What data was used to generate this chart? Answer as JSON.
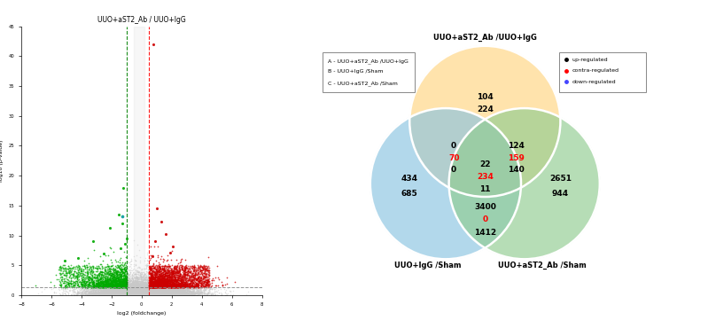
{
  "volcano_title": "UUO+aST2_Ab / UUO+IgG",
  "volcano_xlabel": "log2 (foldchange)",
  "volcano_ylabel": "log10 (p-value)",
  "volcano_xlim": [
    -8,
    8
  ],
  "volcano_ylim": [
    0,
    45
  ],
  "volcano_yticks": [
    0,
    5,
    10,
    15,
    20,
    25,
    30,
    35,
    40,
    45
  ],
  "volcano_xticks": [
    -8,
    -6,
    -4,
    -2,
    0,
    2,
    4,
    6,
    8
  ],
  "green_vline": -1.0,
  "red_vline": 0.5,
  "hline_y": 1.3,
  "venn_title_a": "UUO+aST2_Ab /UUO+IgG",
  "venn_title_b": "UUO+IgG /Sham",
  "venn_title_c": "UUO+aST2_Ab /Sham",
  "legend_a": "A - UUO+aST2_Ab /UUO+IgG",
  "legend_b": "B - UUO+IgG /Sham",
  "legend_c": "C - UUO+aST2_Ab /Sham",
  "circle_a_color": "#FFD580",
  "circle_b_color": "#89C4E1",
  "circle_c_color": "#90CC90",
  "circle_alpha": 0.65,
  "region_a_only_1": "104",
  "region_a_only_2": "224",
  "region_b_only_1": "434",
  "region_b_only_2": "685",
  "region_c_only_1": "2651",
  "region_c_only_2": "944",
  "region_ab_1": "0",
  "region_ab_2": "70",
  "region_ab_3": "0",
  "region_ac_1": "124",
  "region_ac_2": "159",
  "region_ac_3": "140",
  "region_bc_1": "3400",
  "region_bc_2": "0",
  "region_bc_3": "1412",
  "region_abc_1": "22",
  "region_abc_2": "234",
  "region_abc_3": "11",
  "background_color": "#ffffff"
}
